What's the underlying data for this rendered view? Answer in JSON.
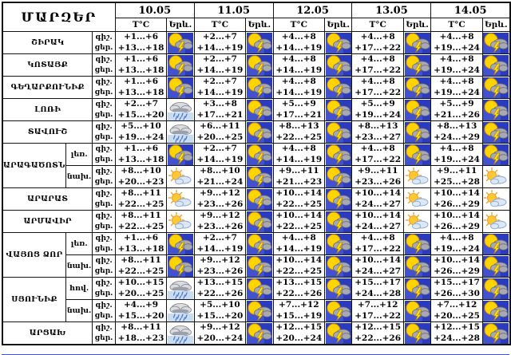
{
  "table": {
    "region_header": "ՄԱՐԶԵՐ",
    "temp_header": "T°C",
    "phenomena_header": "Երև.",
    "night_label": "գիշ.",
    "day_label": "ցեր.",
    "dates": [
      "10.05",
      "11.05",
      "12.05",
      "13.05",
      "14.05"
    ],
    "icon_legend": {
      "storm": "sun-cloud-lightning-icon",
      "rain": "rain-cloud-icon",
      "partly": "sun-cloud-icon"
    },
    "colors": {
      "border": "#141414",
      "storm_bg": "#2b3bbf",
      "sun": "#ffd400",
      "bottom_line": "#3b55c9"
    },
    "groups": [
      {
        "region": "ՇԻՐԱԿ",
        "rows": [
          {
            "sub": null,
            "cells": [
              {
                "night": "+1...+6",
                "day": "+13...+18",
                "icon": "storm"
              },
              {
                "night": "+2...+7",
                "day": "+14...+19",
                "icon": "storm"
              },
              {
                "night": "+4...+8",
                "day": "+14...+19",
                "icon": "storm"
              },
              {
                "night": "+4...+8",
                "day": "+17...+22",
                "icon": "storm"
              },
              {
                "night": "+4...+8",
                "day": "+19...+24",
                "icon": "storm"
              }
            ]
          }
        ]
      },
      {
        "region": "ԿՈՏԱՅՔ",
        "rows": [
          {
            "sub": null,
            "cells": [
              {
                "night": "+1...+6",
                "day": "+13...+18",
                "icon": "storm"
              },
              {
                "night": "+2...+7",
                "day": "+14...+19",
                "icon": "storm"
              },
              {
                "night": "+4...+8",
                "day": "+14...+19",
                "icon": "storm"
              },
              {
                "night": "+4...+8",
                "day": "+17...+22",
                "icon": "storm"
              },
              {
                "night": "+4...+8",
                "day": "+19...+24",
                "icon": "storm"
              }
            ]
          }
        ]
      },
      {
        "region": "ԳԵՂԱՐՔՈՒՆԻՔ",
        "rows": [
          {
            "sub": null,
            "cells": [
              {
                "night": "+1...+6",
                "day": "+13...+18",
                "icon": "storm"
              },
              {
                "night": "+2...+7",
                "day": "+14...+19",
                "icon": "storm"
              },
              {
                "night": "+4...+8",
                "day": "+14...+19",
                "icon": "storm"
              },
              {
                "night": "+4...+8",
                "day": "+17...+22",
                "icon": "storm"
              },
              {
                "night": "+4...+8",
                "day": "+19...+24",
                "icon": "storm"
              }
            ]
          }
        ]
      },
      {
        "region": "ԼՈՌԻ",
        "rows": [
          {
            "sub": null,
            "cells": [
              {
                "night": "+2...+7",
                "day": "+15...+20",
                "icon": "rain"
              },
              {
                "night": "+3...+8",
                "day": "+17...+21",
                "icon": "storm"
              },
              {
                "night": "+5...+9",
                "day": "+17...+21",
                "icon": "storm"
              },
              {
                "night": "+5...+9",
                "day": "+19...+24",
                "icon": "storm"
              },
              {
                "night": "+5...+9",
                "day": "+21...+26",
                "icon": "storm"
              }
            ]
          }
        ]
      },
      {
        "region": "ՏԱՎՈՒՇ",
        "rows": [
          {
            "sub": null,
            "cells": [
              {
                "night": "+5...+10",
                "day": "+19...+24",
                "icon": "rain"
              },
              {
                "night": "+6...+11",
                "day": "+20...+25",
                "icon": "storm"
              },
              {
                "night": "+8...+13",
                "day": "+22...+25",
                "icon": "storm"
              },
              {
                "night": "+8...+13",
                "day": "+23...+27",
                "icon": "storm"
              },
              {
                "night": "+8...+13",
                "day": "+24...+29",
                "icon": "storm"
              }
            ]
          }
        ]
      },
      {
        "region": "ԱՐԱԳԱԾՈՏՆ",
        "rows": [
          {
            "sub": "լեռ.",
            "cells": [
              {
                "night": "+1...+6",
                "day": "+13...+18",
                "icon": "storm"
              },
              {
                "night": "+2...+7",
                "day": "+14...+19",
                "icon": "storm"
              },
              {
                "night": "+4...+8",
                "day": "+14...+19",
                "icon": "storm"
              },
              {
                "night": "+4...+8",
                "day": "+17...+22",
                "icon": "storm"
              },
              {
                "night": "+4...+8",
                "day": "+19...+24",
                "icon": "storm"
              }
            ]
          },
          {
            "sub": "նախ.",
            "cells": [
              {
                "night": "+8...+10",
                "day": "+20...+23",
                "icon": "partly"
              },
              {
                "night": "+8...+10",
                "day": "+21...+24",
                "icon": "storm"
              },
              {
                "night": "+9...+11",
                "day": "+21...+23",
                "icon": "storm"
              },
              {
                "night": "+9...+11",
                "day": "+23...+26",
                "icon": "partly"
              },
              {
                "night": "+9...+11",
                "day": "+25...+28",
                "icon": "partly"
              }
            ]
          }
        ]
      },
      {
        "region": "ԱՐԱՐԱՏ",
        "rows": [
          {
            "sub": null,
            "cells": [
              {
                "night": "+8...+11",
                "day": "+22...+25",
                "icon": "partly"
              },
              {
                "night": "+9...+12",
                "day": "+23...+26",
                "icon": "storm"
              },
              {
                "night": "+10...+14",
                "day": "+22...+25",
                "icon": "storm"
              },
              {
                "night": "+10...+14",
                "day": "+24...+27",
                "icon": "partly"
              },
              {
                "night": "+10...+14",
                "day": "+26...+29",
                "icon": "partly"
              }
            ]
          }
        ]
      },
      {
        "region": "ԱՐՄԱՎԻՐ",
        "rows": [
          {
            "sub": null,
            "cells": [
              {
                "night": "+8...+11",
                "day": "+22...+25",
                "icon": "partly"
              },
              {
                "night": "+9...+12",
                "day": "+23...+26",
                "icon": "storm"
              },
              {
                "night": "+10...+14",
                "day": "+22...+25",
                "icon": "storm"
              },
              {
                "night": "+10...+14",
                "day": "+24...+27",
                "icon": "partly"
              },
              {
                "night": "+10...+14",
                "day": "+26...+29",
                "icon": "partly"
              }
            ]
          }
        ]
      },
      {
        "region": "ՎԱՅՈՑ ՁՈՐ",
        "rows": [
          {
            "sub": "լեռ.",
            "cells": [
              {
                "night": "+1...+6",
                "day": "+13...+18",
                "icon": "storm"
              },
              {
                "night": "+2...+7",
                "day": "+14...+19",
                "icon": "storm"
              },
              {
                "night": "+4...+8",
                "day": "+14...+19",
                "icon": "storm"
              },
              {
                "night": "+4...+8",
                "day": "+17...+22",
                "icon": "storm"
              },
              {
                "night": "+4...+8",
                "day": "+19...+24",
                "icon": "storm"
              }
            ]
          },
          {
            "sub": "նախ.",
            "cells": [
              {
                "night": "+8...+11",
                "day": "+22...+25",
                "icon": "storm"
              },
              {
                "night": "+9...+12",
                "day": "+23...+26",
                "icon": "storm"
              },
              {
                "night": "+10...+14",
                "day": "+22...+25",
                "icon": "storm"
              },
              {
                "night": "+10...+14",
                "day": "+24...+27",
                "icon": "storm"
              },
              {
                "night": "+10...+14",
                "day": "+26...+29",
                "icon": "storm"
              }
            ]
          }
        ]
      },
      {
        "region": "ՍՅՈՒՆԻՔ",
        "rows": [
          {
            "sub": "հով.",
            "cells": [
              {
                "night": "+10...+15",
                "day": "+20...+25",
                "icon": "rain"
              },
              {
                "night": "+13...+15",
                "day": "+22...+26",
                "icon": "storm"
              },
              {
                "night": "+13...+15",
                "day": "+22...+26",
                "icon": "storm"
              },
              {
                "night": "+15...+17",
                "day": "+24...+28",
                "icon": "storm"
              },
              {
                "night": "+15...+17",
                "day": "+26...+30",
                "icon": "storm"
              }
            ]
          },
          {
            "sub": "նախ.",
            "cells": [
              {
                "night": "+4...+9",
                "day": "+15...+20",
                "icon": "rain"
              },
              {
                "night": "+5...+10",
                "day": "+15...+20",
                "icon": "storm"
              },
              {
                "night": "+7...+12",
                "day": "+15...+19",
                "icon": "storm"
              },
              {
                "night": "+7...+12",
                "day": "+17...+22",
                "icon": "storm"
              },
              {
                "night": "+7...+12",
                "day": "+20...+25",
                "icon": "storm"
              }
            ]
          }
        ]
      },
      {
        "region": "ԱՐՑԱԽ",
        "rows": [
          {
            "sub": null,
            "cells": [
              {
                "night": "+8...+11",
                "day": "+18...+23",
                "icon": "rain"
              },
              {
                "night": "+9...+12",
                "day": "+20...+24",
                "icon": "storm"
              },
              {
                "night": "+12...+15",
                "day": "+20...+24",
                "icon": "storm"
              },
              {
                "night": "+12...+15",
                "day": "+22...+26",
                "icon": "storm"
              },
              {
                "night": "+12...+15",
                "day": "+24...+28",
                "icon": "storm"
              }
            ]
          }
        ]
      }
    ]
  }
}
